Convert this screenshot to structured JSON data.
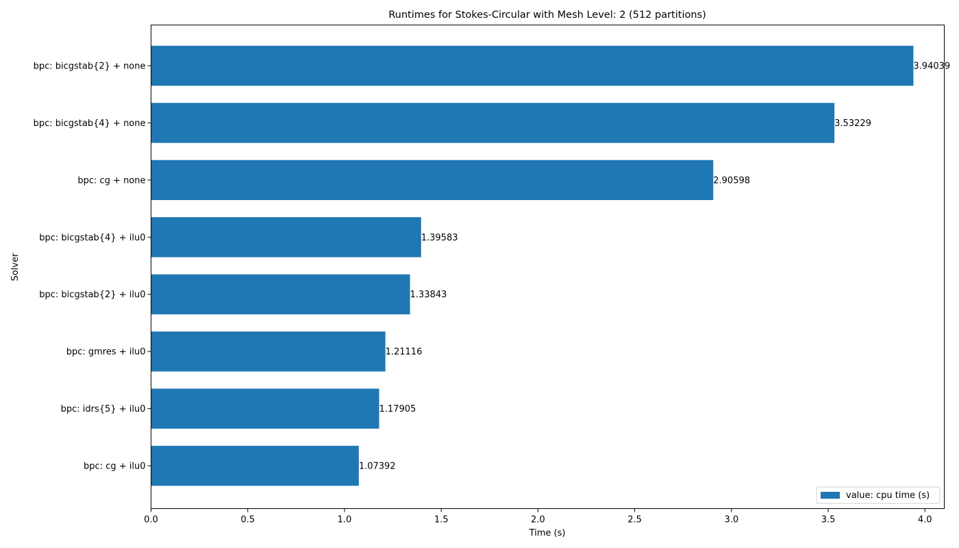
{
  "chart_data": {
    "type": "bar",
    "orientation": "horizontal",
    "title": "Runtimes for Stokes-Circular with Mesh Level: 2 (512 partitions)",
    "xlabel": "Time (s)",
    "ylabel": "Solver",
    "xlim": [
      0,
      4.1
    ],
    "x_ticks": [
      0.0,
      0.5,
      1.0,
      1.5,
      2.0,
      2.5,
      3.0,
      3.5,
      4.0
    ],
    "x_tick_labels": [
      "0.0",
      "0.5",
      "1.0",
      "1.5",
      "2.0",
      "2.5",
      "3.0",
      "3.5",
      "4.0"
    ],
    "categories": [
      "bpc: bicgstab{2} + none",
      "bpc: bicgstab{4} + none",
      "bpc: cg + none",
      "bpc: bicgstab{4} + ilu0",
      "bpc: bicgstab{2} + ilu0",
      "bpc: gmres + ilu0",
      "bpc: idrs{5} + ilu0",
      "bpc: cg + ilu0"
    ],
    "series": [
      {
        "name": "value: cpu time (s)",
        "color": "#1f77b4",
        "values": [
          3.94039,
          3.53229,
          2.90598,
          1.39583,
          1.33843,
          1.21116,
          1.17905,
          1.07392
        ],
        "value_labels": [
          "3.94039",
          "3.53229",
          "2.90598",
          "1.39583",
          "1.33843",
          "1.21116",
          "1.17905",
          "1.07392"
        ]
      }
    ],
    "grid": false,
    "legend": {
      "position": "lower-right"
    }
  }
}
